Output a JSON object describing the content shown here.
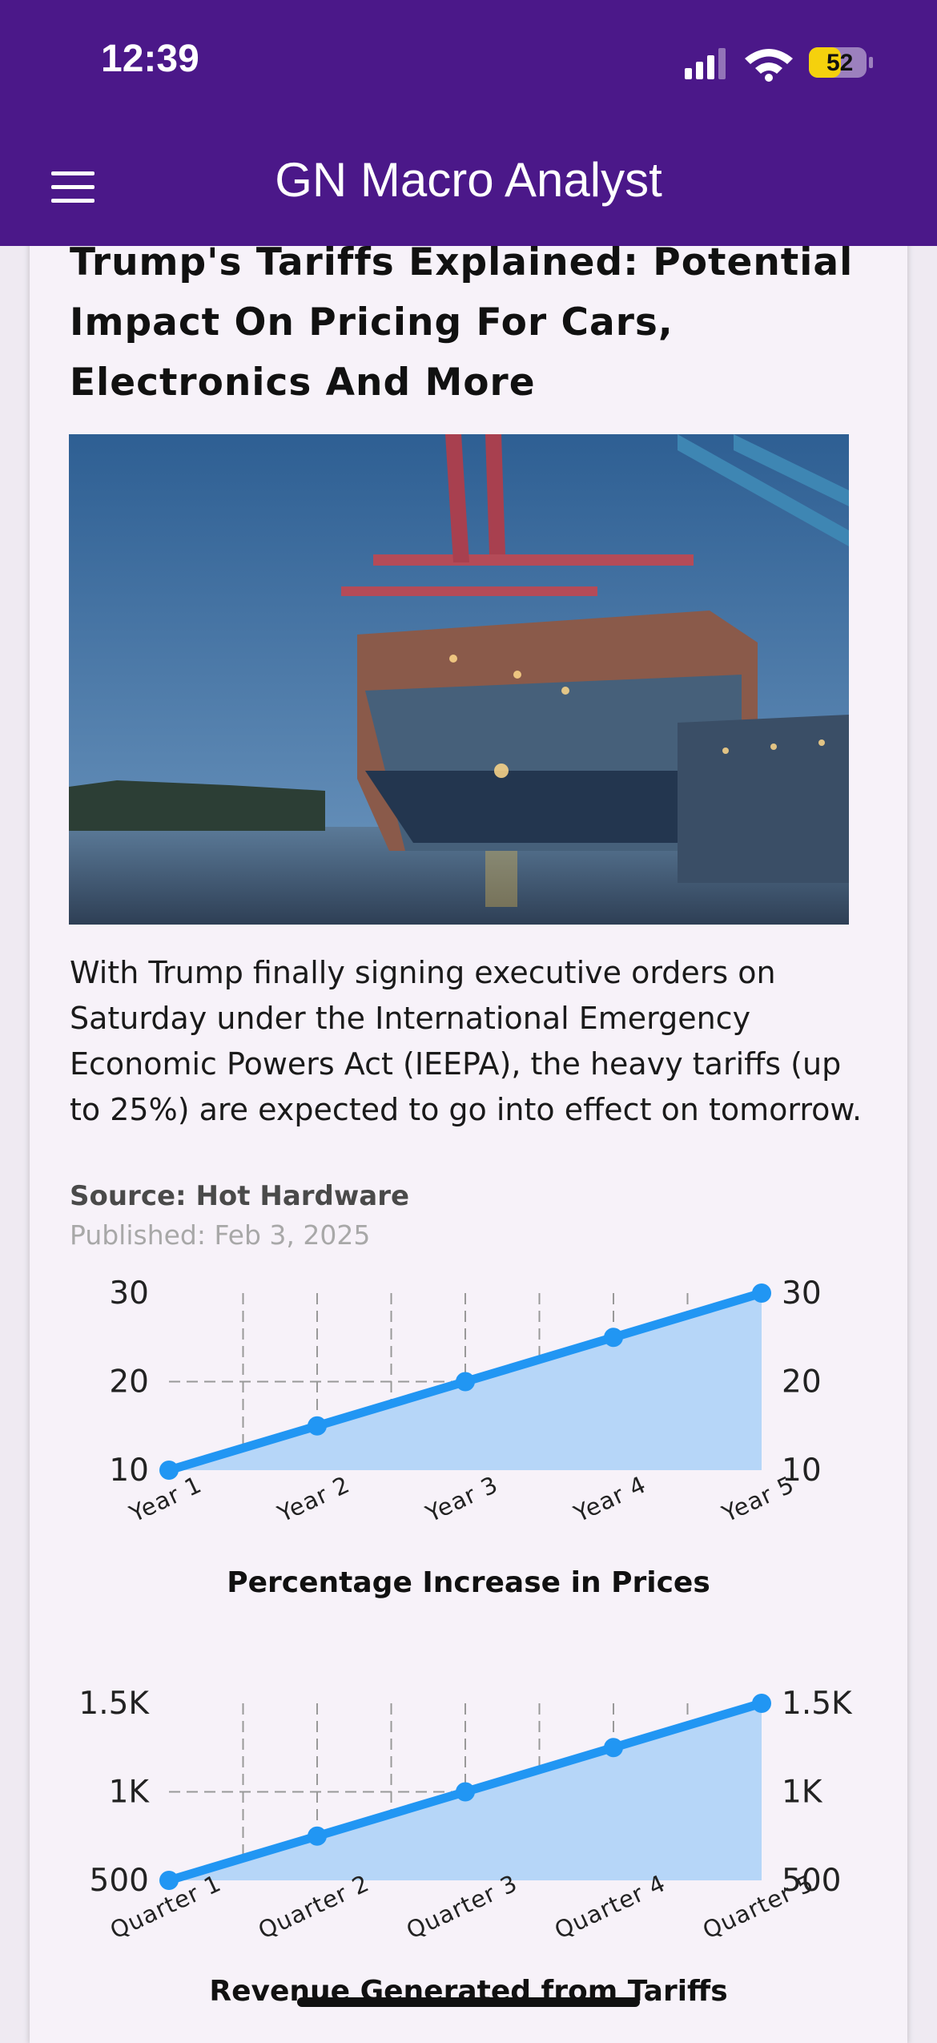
{
  "status_bar": {
    "time": "12:39",
    "battery": "52"
  },
  "app_bar": {
    "title": "GN Macro Analyst"
  },
  "article": {
    "title": "Trump's Tariffs Explained: Potential Impact On Pricing For Cars, Electronics And More",
    "body": "With Trump finally signing executive orders on Saturday under the International Emergency Economic Powers Act (IEEPA), the heavy tariffs (up to 25%) are expected to go into effect on tomorrow.",
    "source": "Source: Hot Hardware",
    "published": "Published: Feb 3, 2025"
  },
  "chart_data": [
    {
      "type": "area",
      "title": "Percentage Increase in Prices",
      "categories": [
        "Year 1",
        "Year 2",
        "Year 3",
        "Year 4",
        "Year 5"
      ],
      "values": [
        10,
        15,
        20,
        25,
        30
      ],
      "color": "#2196f3",
      "fill_color": "#b6d6f8",
      "ylim": [
        10,
        30
      ],
      "yticks": [
        10,
        20,
        30
      ],
      "grid": true,
      "mirror_y_ticks": true
    },
    {
      "type": "area",
      "title": "Revenue Generated from Tariffs",
      "categories": [
        "Quarter 1",
        "Quarter 2",
        "Quarter 3",
        "Quarter 4",
        "Quarter 5"
      ],
      "values": [
        500,
        750,
        1000,
        1250,
        1500
      ],
      "color": "#2196f3",
      "fill_color": "#b6d6f8",
      "ylim": [
        500,
        1500
      ],
      "yticks": [
        500,
        {
          "value": 1000,
          "label": "1K"
        },
        {
          "value": 1500,
          "label": "1.5K"
        }
      ],
      "grid": true,
      "mirror_y_ticks": true
    }
  ]
}
